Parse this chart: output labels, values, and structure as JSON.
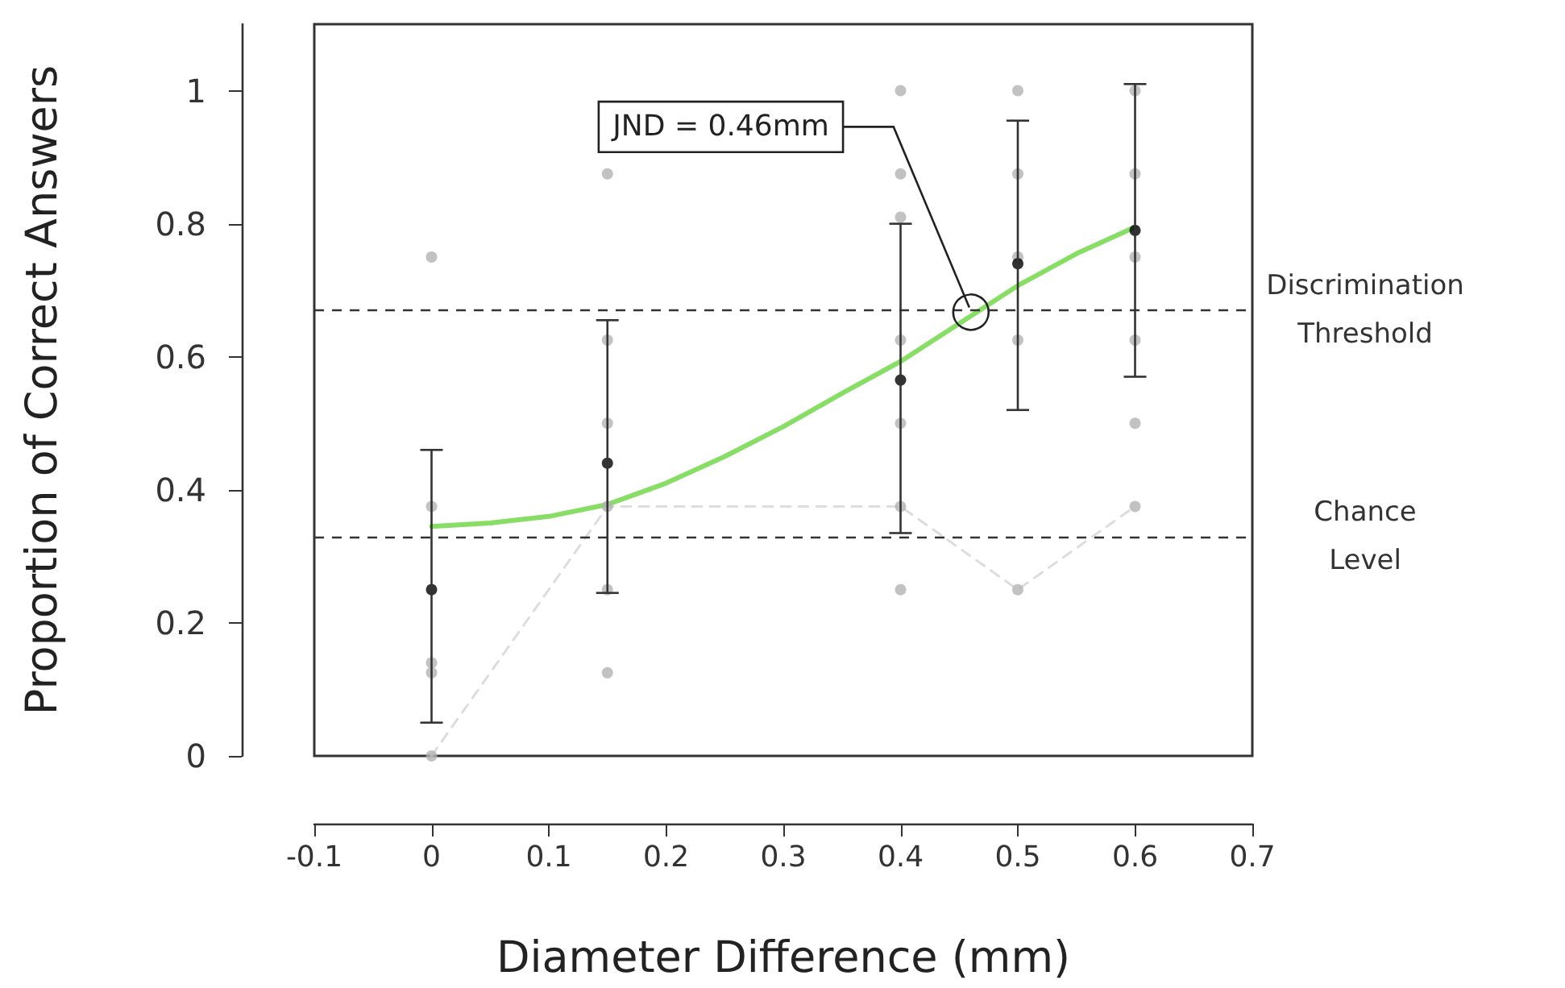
{
  "chart_data": {
    "type": "scatter",
    "xlabel": "Diameter Difference (mm)",
    "ylabel": "Proportion of Correct Answers",
    "xlim": [
      -0.1,
      0.7
    ],
    "xticks": [
      -0.1,
      0,
      0.1,
      0.2,
      0.3,
      0.4,
      0.5,
      0.6,
      0.7
    ],
    "ylim": [
      0,
      1.1
    ],
    "yticks": [
      0,
      0.2,
      0.4,
      0.6,
      0.8,
      1
    ],
    "grid": false,
    "series": [
      {
        "color": "#b3b3b3",
        "marker": "circle",
        "x": [
          0,
          0,
          0,
          0,
          0,
          0.15,
          0.15,
          0.15,
          0.15,
          0.15,
          0.15,
          0.4,
          0.4,
          0.4,
          0.4,
          0.4,
          0.4,
          0.4,
          0.5,
          0.5,
          0.5,
          0.5,
          0.5,
          0.6,
          0.6,
          0.6,
          0.6,
          0.6,
          0.6
        ],
        "values": [
          0.75,
          0.375,
          0.14,
          0.125,
          0,
          0.875,
          0.625,
          0.5,
          0.375,
          0.25,
          0.125,
          1,
          0.875,
          0.81,
          0.625,
          0.5,
          0.375,
          0.25,
          1,
          0.875,
          0.75,
          0.625,
          0.25,
          1,
          0.875,
          0.75,
          0.625,
          0.5,
          0.375
        ]
      },
      {
        "type": "line",
        "color": "#dddddd",
        "line_style": "dashed",
        "marker": "none",
        "x": [
          0,
          0.15,
          0.4,
          0.5,
          0.6
        ],
        "values": [
          0,
          0.375,
          0.375,
          0.25,
          0.375
        ]
      },
      {
        "type": "line",
        "color": "#88dd66",
        "line_style": "solid",
        "marker": "none",
        "x": [
          0,
          0.05,
          0.1,
          0.15,
          0.2,
          0.25,
          0.3,
          0.35,
          0.4,
          0.45,
          0.5,
          0.55,
          0.6
        ],
        "values": [
          0.345,
          0.35,
          0.36,
          0.378,
          0.41,
          0.45,
          0.495,
          0.545,
          0.593,
          0.65,
          0.707,
          0.755,
          0.795
        ]
      },
      {
        "color": "#000000",
        "marker": "circle",
        "x": [
          0,
          0.15,
          0.4,
          0.5,
          0.6
        ],
        "values": [
          0.25,
          0.44,
          0.565,
          0.74,
          0.79
        ],
        "errors": [
          [
            0.05,
            0.46
          ],
          [
            0.245,
            0.655
          ],
          [
            0.335,
            0.8
          ],
          [
            0.52,
            0.955
          ],
          [
            0.57,
            1.01
          ]
        ]
      }
    ],
    "ref_lines": [
      {
        "axis": "y",
        "value": 0.667,
        "label": "Discrimination\nThreshold",
        "color": "#333333",
        "line_style": "dashed"
      },
      {
        "axis": "y",
        "value": 0.333,
        "label": "Chance\nLevel",
        "color": "#333333",
        "line_style": "dashed"
      }
    ],
    "annotations": [
      {
        "text": "JND = 0.46mm",
        "x": 0.46,
        "y": 0.667
      }
    ]
  }
}
